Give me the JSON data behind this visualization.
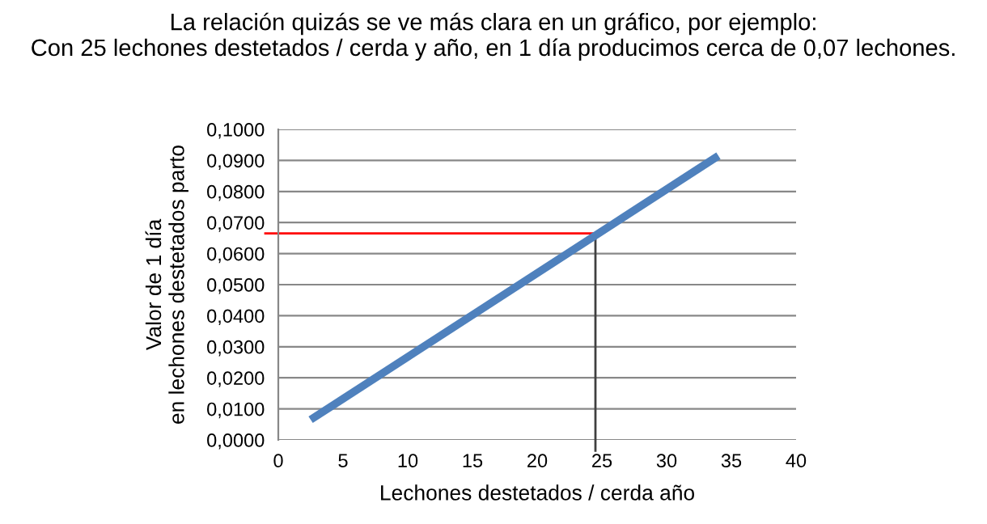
{
  "chart_data": {
    "type": "line",
    "title": "La relación quizás se ve más clara en un gráfico, por ejemplo:\nCon 25 lechones destetados / cerda y año, en 1 día producimos cerca de 0,07 lechones.",
    "xlabel": "Lechones destetados / cerda año",
    "ylabel": "Valor de 1 día\nen lechones destetados parto",
    "x": [
      2.5,
      34
    ],
    "series": [
      {
        "color": "#4f81bd",
        "values": [
          0.0065,
          0.0915
        ]
      }
    ],
    "xlim": [
      0,
      40
    ],
    "xticks": [
      0,
      5,
      10,
      15,
      20,
      25,
      30,
      35,
      40
    ],
    "ylim": [
      0,
      0.1
    ],
    "yticks": [
      {
        "value": 0,
        "label": "0,0000"
      },
      {
        "value": 0.01,
        "label": "0,0100"
      },
      {
        "value": 0.02,
        "label": "0,0200"
      },
      {
        "value": 0.03,
        "label": "0,0300"
      },
      {
        "value": 0.04,
        "label": "0,0400"
      },
      {
        "value": 0.05,
        "label": "0,0500"
      },
      {
        "value": 0.06,
        "label": "0,0600"
      },
      {
        "value": 0.07,
        "label": "0,0700"
      },
      {
        "value": 0.08,
        "label": "0,0800"
      },
      {
        "value": 0.09,
        "label": "0,0900"
      },
      {
        "value": 0.1,
        "label": "0,1000"
      }
    ],
    "grid": "y",
    "marker": "none",
    "line_style": "solid",
    "ref_lines": [
      {
        "axis": "y",
        "value": 0.0665,
        "color": "#ff0000"
      },
      {
        "axis": "x",
        "value": 24.5,
        "color": "#404040"
      }
    ]
  }
}
